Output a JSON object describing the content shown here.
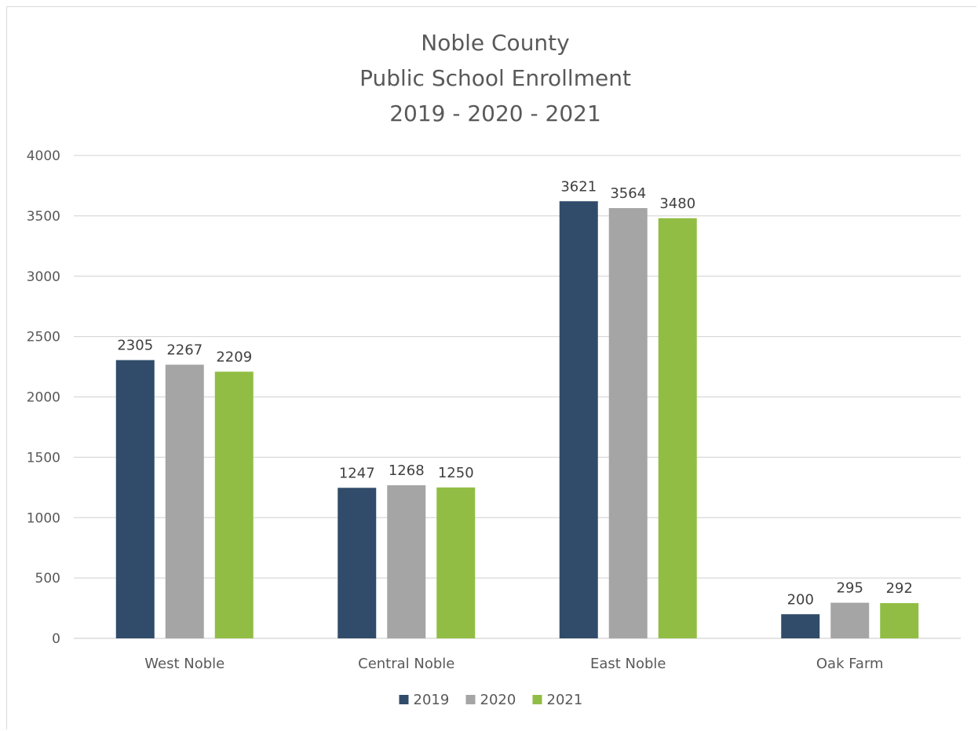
{
  "chart_data": {
    "type": "bar",
    "title_lines": [
      "Noble County",
      "Public School Enrollment",
      "2019 - 2020 - 2021"
    ],
    "categories": [
      "West Noble",
      "Central Noble",
      "East Noble",
      "Oak Farm"
    ],
    "series": [
      {
        "name": "2019",
        "color": "#314c6a",
        "values": [
          2305,
          1247,
          3621,
          200
        ]
      },
      {
        "name": "2020",
        "color": "#a5a5a5",
        "values": [
          2267,
          1268,
          3564,
          295
        ]
      },
      {
        "name": "2021",
        "color": "#91bd44",
        "values": [
          2209,
          1250,
          3480,
          292
        ]
      }
    ],
    "yticks": [
      "0",
      "500",
      "1000",
      "1500",
      "2000",
      "2500",
      "3000",
      "3500",
      "4000"
    ],
    "ylim": [
      0,
      4000
    ],
    "xlabel": "",
    "ylabel": "",
    "grid": true,
    "legend_position": "bottom",
    "gridline_color": "#d9d9d9"
  }
}
